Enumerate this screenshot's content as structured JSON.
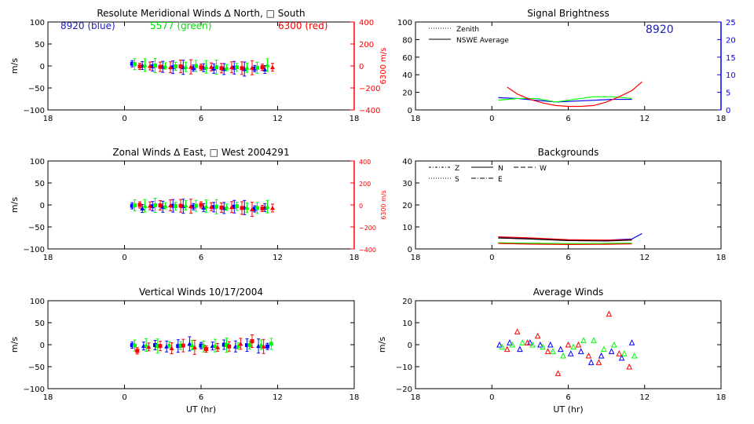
{
  "x_axis_ticks": [
    "18",
    "0",
    "6",
    "12",
    "18"
  ],
  "x_axis_label": "UT (hr)",
  "ylabel": "m/s",
  "colors": {
    "blue": "#0000ff",
    "green": "#00ff00",
    "red": "#ff0000",
    "axis": "#000000",
    "wl_blue": "#2020b0",
    "green_label": "#00e000",
    "red_label": "#ff0000"
  },
  "panels": {
    "meridional": {
      "title": "Resolute Meridional Winds ∆ North, □ South",
      "legend": {
        "blue": "8920 (blue)",
        "green": "5577 (green)",
        "red": "6300 (red)"
      },
      "y_ticks": [
        "100",
        "50",
        "0",
        "−50",
        "−100"
      ],
      "right_ticks": [
        "400",
        "200",
        "0",
        "−200",
        "−400"
      ],
      "right_label": "6300 m/s"
    },
    "zonal": {
      "title": "Zonal Winds ∆ East, □ West 2004291",
      "y_ticks": [
        "100",
        "50",
        "0",
        "−50",
        "−100"
      ],
      "right_ticks": [
        "400",
        "200",
        "0",
        "−200",
        "−400"
      ],
      "right_label": "6300 m/s"
    },
    "vertical": {
      "title": "Vertical Winds 10/17/2004",
      "y_ticks": [
        "100",
        "50",
        "0",
        "−50",
        "−100"
      ]
    },
    "brightness": {
      "title": "Signal Brightness",
      "legend": {
        "zenith": "Zenith",
        "average": "NSWE Average"
      },
      "wavelength": "8920",
      "y_ticks": [
        "100",
        "80",
        "60",
        "40",
        "20",
        "0"
      ],
      "right_ticks": [
        "25",
        "20",
        "15",
        "10",
        "5",
        "0"
      ]
    },
    "backgrounds": {
      "title": "Backgrounds",
      "legend": [
        "Z",
        "N",
        "W",
        "S",
        "E"
      ],
      "y_ticks": [
        "40",
        "30",
        "20",
        "10",
        "0"
      ]
    },
    "average": {
      "title": "Average Winds",
      "y_ticks": [
        "20",
        "10",
        "0",
        "−10",
        "−20"
      ]
    }
  },
  "chart_data": [
    {
      "type": "scatter",
      "title": "Resolute Meridional Winds ∆ North, □ South",
      "xlabel": "",
      "ylabel": "m/s",
      "xlim": [
        -6,
        18
      ],
      "ylim": [
        -100,
        100
      ],
      "right_axis": {
        "label": "6300 m/s",
        "ylim": [
          -400,
          400
        ]
      },
      "series": [
        {
          "name": "8920 (blue)",
          "x": [
            0.6,
            1.4,
            2.2,
            3.0,
            3.8,
            4.6,
            5.4,
            6.2,
            7.0,
            7.8,
            8.6,
            9.4,
            10.2,
            11.0
          ],
          "y": [
            5,
            1,
            -1,
            -2,
            -3,
            -3,
            -5,
            -4,
            -6,
            -7,
            -4,
            -7,
            -6,
            -8
          ]
        },
        {
          "name": "5577 (green)",
          "x": [
            0.8,
            1.6,
            2.4,
            3.2,
            4.0,
            4.8,
            5.6,
            6.4,
            7.2,
            8.0,
            8.8,
            9.6,
            10.4,
            11.2
          ],
          "y": [
            4,
            2,
            1,
            0,
            -1,
            -2,
            0,
            -2,
            -3,
            -4,
            -3,
            -4,
            -4,
            2
          ]
        },
        {
          "name": "6300 (red)",
          "x": [
            1.2,
            2.0,
            2.8,
            3.6,
            4.4,
            5.2,
            6.0,
            6.8,
            7.6,
            8.4,
            9.2,
            10.0,
            10.8,
            11.6
          ],
          "y": [
            -1,
            0,
            -2,
            -3,
            -1,
            -2,
            -3,
            -2,
            -5,
            -3,
            -5,
            -4,
            -3,
            -3
          ]
        }
      ]
    },
    {
      "type": "scatter",
      "title": "Zonal Winds ∆ East, □ West 2004291",
      "xlabel": "",
      "ylabel": "m/s",
      "xlim": [
        -6,
        18
      ],
      "ylim": [
        -100,
        100
      ],
      "right_axis": {
        "label": "6300 m/s",
        "ylim": [
          -400,
          400
        ]
      },
      "series": [
        {
          "name": "blue",
          "x": [
            0.6,
            1.4,
            2.2,
            3.0,
            3.8,
            4.6,
            5.4,
            6.2,
            7.0,
            7.8,
            8.6,
            9.4,
            10.2,
            11.0
          ],
          "y": [
            -2,
            -8,
            -3,
            -4,
            -2,
            -3,
            -4,
            -6,
            -5,
            -7,
            -4,
            -6,
            -9,
            -6
          ]
        },
        {
          "name": "green",
          "x": [
            0.8,
            1.6,
            2.4,
            3.2,
            4.0,
            4.8,
            5.6,
            6.4,
            7.2,
            8.0,
            8.8,
            9.6,
            10.4,
            11.2
          ],
          "y": [
            -1,
            -2,
            -1,
            -2,
            -3,
            -1,
            -2,
            -3,
            -4,
            -5,
            -3,
            -6,
            -7,
            -4
          ]
        },
        {
          "name": "red",
          "x": [
            1.2,
            2.0,
            2.8,
            3.6,
            4.4,
            5.2,
            6.0,
            6.8,
            7.6,
            8.4,
            9.2,
            10.0,
            10.8,
            11.6
          ],
          "y": [
            0,
            -2,
            -1,
            -1,
            -2,
            -3,
            0,
            -4,
            -6,
            -5,
            -7,
            -10,
            -8,
            -7
          ]
        }
      ]
    },
    {
      "type": "scatter",
      "title": "Vertical Winds 10/17/2004",
      "xlabel": "UT (hr)",
      "ylabel": "m/s",
      "xlim": [
        -6,
        18
      ],
      "ylim": [
        -100,
        100
      ],
      "series": [
        {
          "name": "blue",
          "x": [
            0.6,
            1.5,
            2.4,
            3.3,
            4.2,
            5.1,
            6.0,
            6.9,
            7.8,
            8.7,
            9.6,
            10.5,
            11.2
          ],
          "y": [
            -1,
            -3,
            -1,
            -4,
            -3,
            2,
            -2,
            -3,
            0,
            -4,
            -1,
            -3,
            -4
          ]
        },
        {
          "name": "green",
          "x": [
            0.8,
            1.7,
            2.6,
            3.5,
            4.4,
            5.3,
            6.2,
            7.1,
            8.0,
            8.9,
            9.8,
            10.7,
            11.5
          ],
          "y": [
            -2,
            -1,
            -3,
            0,
            -2,
            -1,
            -4,
            -2,
            -1,
            -3,
            -1,
            0,
            2
          ]
        },
        {
          "name": "red",
          "x": [
            1.0,
            1.9,
            2.8,
            3.7,
            4.6,
            5.5,
            6.4,
            7.3,
            8.2,
            9.1,
            10.0,
            10.9
          ],
          "y": [
            -14,
            -5,
            -3,
            -8,
            -2,
            -6,
            -10,
            -6,
            -4,
            2,
            8,
            -4
          ]
        }
      ]
    },
    {
      "type": "line",
      "title": "Signal Brightness",
      "xlabel": "",
      "ylabel": "",
      "xlim": [
        -6,
        18
      ],
      "ylim": [
        0,
        100
      ],
      "right_axis": {
        "label": "",
        "ylim": [
          0,
          25
        ]
      },
      "series": [
        {
          "name": "blue",
          "x": [
            0.5,
            2,
            3.5,
            5,
            6.5,
            8,
            9.5,
            11
          ],
          "y": [
            14,
            13,
            11,
            9,
            10,
            11,
            12,
            12
          ]
        },
        {
          "name": "green",
          "x": [
            0.5,
            2,
            3.5,
            5,
            6.5,
            8,
            9.5,
            11
          ],
          "y": [
            11,
            13,
            13,
            9,
            12,
            15,
            15,
            13
          ]
        },
        {
          "name": "red",
          "x": [
            1.2,
            2,
            3,
            4,
            5,
            6,
            7,
            8,
            9,
            10,
            11,
            11.8
          ],
          "y": [
            26,
            18,
            12,
            8,
            5,
            4,
            4,
            5,
            9,
            15,
            22,
            32
          ]
        }
      ]
    },
    {
      "type": "line",
      "title": "Backgrounds",
      "xlabel": "",
      "ylabel": "",
      "xlim": [
        -6,
        18
      ],
      "ylim": [
        0,
        40
      ],
      "series": [
        {
          "name": "Z",
          "x": [
            0.5,
            3,
            6,
            9,
            11,
            11.8
          ],
          "y": [
            5,
            4.8,
            4,
            4,
            4.5,
            7
          ]
        },
        {
          "name": "N",
          "x": [
            0.5,
            3,
            6,
            9,
            11
          ],
          "y": [
            5.5,
            5,
            4.2,
            4,
            4.2
          ]
        },
        {
          "name": "W",
          "x": [
            0.5,
            3,
            6,
            9,
            11
          ],
          "y": [
            5,
            4.5,
            3.8,
            3.6,
            4
          ]
        },
        {
          "name": "S",
          "x": [
            0.5,
            3,
            6,
            9,
            11
          ],
          "y": [
            2.8,
            2.6,
            2.4,
            2.5,
            2.6
          ]
        },
        {
          "name": "E",
          "x": [
            0.5,
            3,
            6,
            9,
            11
          ],
          "y": [
            2.5,
            2.2,
            2.0,
            2.1,
            2.3
          ]
        }
      ]
    },
    {
      "type": "scatter",
      "title": "Average Winds",
      "xlabel": "UT (hr)",
      "ylabel": "m/s",
      "xlim": [
        -6,
        18
      ],
      "ylim": [
        -20,
        20
      ],
      "series": [
        {
          "name": "blue",
          "x": [
            0.6,
            1.4,
            2.2,
            3.0,
            3.8,
            4.6,
            5.4,
            6.2,
            7.0,
            7.8,
            8.6,
            9.4,
            10.2,
            11.0
          ],
          "y": [
            0,
            1,
            -2,
            1,
            0,
            0,
            -2,
            -4,
            -3,
            -8,
            -5,
            -3,
            -6,
            1
          ]
        },
        {
          "name": "green",
          "x": [
            0.8,
            1.6,
            2.4,
            3.2,
            4.0,
            4.8,
            5.6,
            6.4,
            7.2,
            8.0,
            8.8,
            9.6,
            10.4,
            11.2
          ],
          "y": [
            -1,
            0,
            1,
            0,
            -1,
            -3,
            -5,
            -1,
            2,
            2,
            -2,
            0,
            -4,
            -5
          ]
        },
        {
          "name": "red",
          "x": [
            1.2,
            2.0,
            2.8,
            3.6,
            4.4,
            5.2,
            6.0,
            6.8,
            7.6,
            8.4,
            9.2,
            10.0,
            10.8
          ],
          "y": [
            -2,
            6,
            1,
            4,
            -3,
            -13,
            0,
            0,
            -5,
            -8,
            14,
            -4,
            -10
          ]
        }
      ]
    }
  ]
}
